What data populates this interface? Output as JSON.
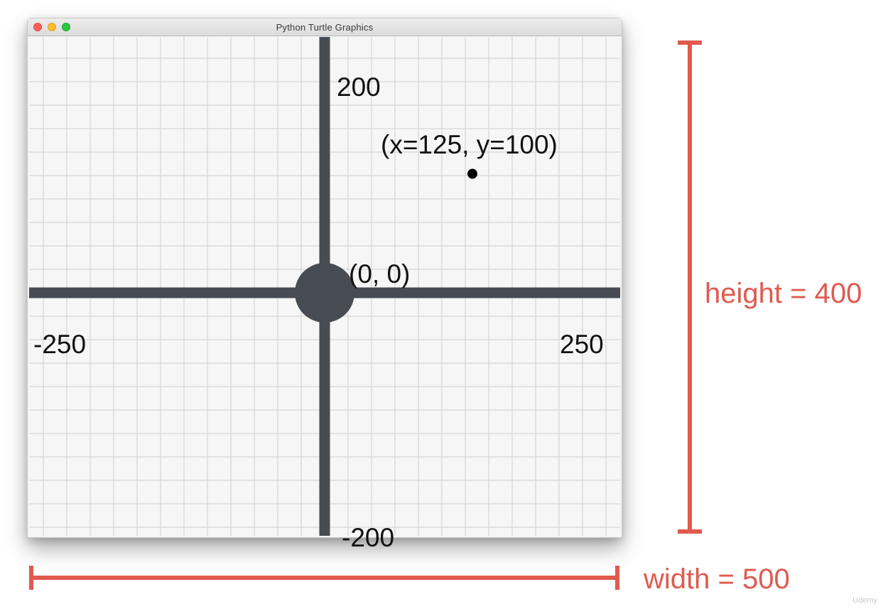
{
  "window": {
    "title": "Python Turtle Graphics"
  },
  "canvas": {
    "x_range": [
      -250,
      250
    ],
    "y_range": [
      -200,
      200
    ],
    "labels": {
      "y_max": "200",
      "y_min": "-200",
      "x_min": "-250",
      "x_max": "250",
      "origin": "(0, 0)",
      "point": "(x=125, y=100)"
    },
    "point": {
      "x": 125,
      "y": 100
    },
    "origin": {
      "x": 0,
      "y": 0
    },
    "colors": {
      "axis": "#474c53",
      "grid": "#d7d7d7",
      "point": "#000000",
      "background": "#f6f6f6"
    }
  },
  "annotations": {
    "height_label": "height = 400",
    "width_label": "width = 500",
    "color": "#e05a4f"
  },
  "watermark": "Udemy"
}
